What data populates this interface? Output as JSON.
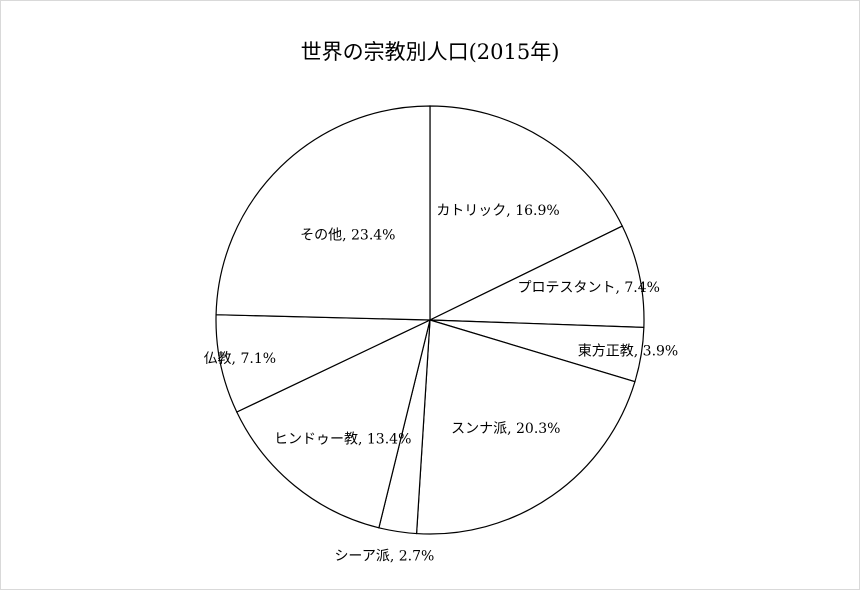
{
  "chart_data": {
    "type": "pie",
    "title": "世界の宗教別人口(2015年)",
    "slices": [
      {
        "label": "カトリック",
        "value": 16.9,
        "text": "カトリック, 16.9%"
      },
      {
        "label": "プロテスタント",
        "value": 7.4,
        "text": "プロテスタント, 7.4%"
      },
      {
        "label": "東方正教",
        "value": 3.9,
        "text": "東方正教, 3.9%"
      },
      {
        "label": "スンナ派",
        "value": 20.3,
        "text": "スンナ派, 20.3%"
      },
      {
        "label": "シーア派",
        "value": 2.7,
        "text": "シーア派, 2.7%"
      },
      {
        "label": "ヒンドゥー教",
        "value": 13.4,
        "text": "ヒンドゥー教, 13.4%"
      },
      {
        "label": "仏教",
        "value": 7.1,
        "text": "仏教, 7.1%"
      },
      {
        "label": "その他",
        "value": 23.4,
        "text": "その他, 23.4%"
      }
    ],
    "start": "12 o'clock",
    "direction": "clockwise",
    "legend": "none",
    "colors": {
      "fill": "#ffffff",
      "stroke": "#000000"
    }
  }
}
